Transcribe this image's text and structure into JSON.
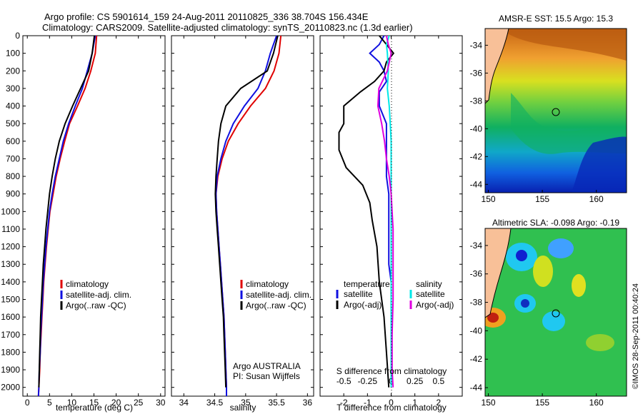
{
  "header": {
    "line1": "Argo profile: CS 5901614_159 24-Aug-2011 20110825_336 38.704S 156.434E",
    "line2": "Climatology: CARS2009. Satellite-adjusted climatology: synTS_20110823.nc (1.3d earlier)"
  },
  "colors": {
    "climatology": "#e00000",
    "satellite": "#1010e0",
    "argo": "#000000",
    "sal_satellite": "#00e8e8",
    "sal_argo": "#e000e0"
  },
  "depth_axis": {
    "ticks": [
      "0",
      "100",
      "200",
      "300",
      "400",
      "500",
      "600",
      "700",
      "800",
      "900",
      "1000",
      "1100",
      "1200",
      "1300",
      "1400",
      "1500",
      "1600",
      "1700",
      "1800",
      "1900",
      "2000"
    ]
  },
  "legend_profiles": {
    "climatology": "climatology",
    "satellite": "satellite-adj. clim.",
    "argo": "Argo(..raw -QC)"
  },
  "legend_diff": {
    "temp_title": "temperature",
    "temp_sat": "satellite",
    "temp_argo": "Argo(-adj)",
    "sal_title": "salinity",
    "sal_sat": "satellite",
    "sal_argo": "Argo(-adj)"
  },
  "credits": {
    "line1": "Argo AUSTRALIA",
    "line2": "PI: Susan Wijffels"
  },
  "side_stamp": "©IMOS 28-Sep-2011 00:40:24",
  "chart_data": [
    {
      "type": "line",
      "panel": "temperature",
      "xlabel": "temperature (deg C)",
      "ylabel": "",
      "xlim": [
        -1,
        31
      ],
      "ylim": [
        2050,
        0
      ],
      "xticks": [
        "0",
        "5",
        "10",
        "15",
        "20",
        "25",
        "30"
      ],
      "yticks": [
        "0",
        "100",
        "200",
        "300",
        "400",
        "500",
        "600",
        "700",
        "800",
        "900",
        "1000",
        "1100",
        "1200",
        "1300",
        "1400",
        "1500",
        "1600",
        "1700",
        "1800",
        "1900",
        "2000"
      ],
      "series": [
        {
          "name": "climatology",
          "points": [
            [
              15.6,
              0
            ],
            [
              15.3,
              100
            ],
            [
              14.3,
              200
            ],
            [
              13.0,
              300
            ],
            [
              11.3,
              400
            ],
            [
              9.5,
              500
            ],
            [
              8.4,
              600
            ],
            [
              7.4,
              700
            ],
            [
              6.5,
              800
            ],
            [
              5.8,
              900
            ],
            [
              5.1,
              1000
            ],
            [
              4.7,
              1100
            ],
            [
              4.3,
              1200
            ],
            [
              4.0,
              1300
            ],
            [
              3.7,
              1400
            ],
            [
              3.5,
              1500
            ],
            [
              3.3,
              1600
            ],
            [
              3.1,
              1700
            ],
            [
              2.9,
              1800
            ],
            [
              2.8,
              1900
            ],
            [
              2.6,
              2000
            ],
            [
              2.5,
              2050
            ]
          ]
        },
        {
          "name": "satellite-adj. clim.",
          "points": [
            [
              15.3,
              0
            ],
            [
              14.6,
              100
            ],
            [
              13.5,
              200
            ],
            [
              12.4,
              300
            ],
            [
              10.8,
              400
            ],
            [
              9.3,
              500
            ],
            [
              8.1,
              600
            ],
            [
              7.2,
              700
            ],
            [
              6.3,
              800
            ],
            [
              5.6,
              900
            ],
            [
              5.0,
              1000
            ],
            [
              4.6,
              1100
            ],
            [
              4.2,
              1200
            ],
            [
              3.9,
              1300
            ],
            [
              3.6,
              1400
            ],
            [
              3.4,
              1500
            ],
            [
              3.2,
              1600
            ],
            [
              3.0,
              1700
            ],
            [
              2.9,
              1800
            ],
            [
              2.7,
              1900
            ],
            [
              2.6,
              2000
            ],
            [
              2.5,
              2050
            ]
          ]
        },
        {
          "name": "Argo(..raw -QC)",
          "points": [
            [
              15.1,
              0
            ],
            [
              14.6,
              100
            ],
            [
              13.8,
              200
            ],
            [
              12.0,
              300
            ],
            [
              10.2,
              400
            ],
            [
              8.5,
              500
            ],
            [
              7.2,
              600
            ],
            [
              6.3,
              700
            ],
            [
              5.6,
              800
            ],
            [
              5.0,
              900
            ],
            [
              4.6,
              1000
            ],
            [
              4.2,
              1100
            ],
            [
              3.9,
              1200
            ],
            [
              3.6,
              1300
            ],
            [
              3.4,
              1400
            ],
            [
              3.2,
              1500
            ],
            [
              3.0,
              1600
            ],
            [
              2.9,
              1700
            ],
            [
              2.8,
              1800
            ],
            [
              2.7,
              1900
            ],
            [
              2.6,
              2000
            ]
          ]
        }
      ]
    },
    {
      "type": "line",
      "panel": "salinity",
      "xlabel": "salinity",
      "ylabel": "",
      "xlim": [
        33.8,
        36.1
      ],
      "ylim": [
        2050,
        0
      ],
      "xticks": [
        "34",
        "34.5",
        "35",
        "35.5",
        "36"
      ],
      "series": [
        {
          "name": "climatology",
          "points": [
            [
              35.57,
              0
            ],
            [
              35.54,
              100
            ],
            [
              35.46,
              200
            ],
            [
              35.32,
              300
            ],
            [
              35.08,
              400
            ],
            [
              34.88,
              500
            ],
            [
              34.72,
              600
            ],
            [
              34.62,
              700
            ],
            [
              34.55,
              800
            ],
            [
              34.52,
              900
            ],
            [
              34.53,
              1000
            ],
            [
              34.55,
              1100
            ],
            [
              34.57,
              1200
            ],
            [
              34.59,
              1300
            ],
            [
              34.61,
              1400
            ],
            [
              34.63,
              1500
            ],
            [
              34.65,
              1600
            ],
            [
              34.66,
              1700
            ],
            [
              34.67,
              1800
            ],
            [
              34.68,
              1900
            ],
            [
              34.69,
              2000
            ],
            [
              34.69,
              2050
            ]
          ]
        },
        {
          "name": "satellite-adj. clim.",
          "points": [
            [
              35.5,
              0
            ],
            [
              35.4,
              100
            ],
            [
              35.32,
              200
            ],
            [
              35.2,
              300
            ],
            [
              34.98,
              400
            ],
            [
              34.8,
              500
            ],
            [
              34.68,
              600
            ],
            [
              34.6,
              700
            ],
            [
              34.54,
              800
            ],
            [
              34.52,
              900
            ],
            [
              34.53,
              1000
            ],
            [
              34.55,
              1100
            ],
            [
              34.57,
              1200
            ],
            [
              34.59,
              1300
            ],
            [
              34.61,
              1400
            ],
            [
              34.63,
              1500
            ],
            [
              34.65,
              1600
            ],
            [
              34.66,
              1700
            ],
            [
              34.67,
              1800
            ],
            [
              34.68,
              1900
            ],
            [
              34.69,
              2000
            ],
            [
              34.69,
              2050
            ]
          ]
        },
        {
          "name": "Argo(..raw -QC)",
          "points": [
            [
              35.52,
              0
            ],
            [
              35.45,
              100
            ],
            [
              35.35,
              200
            ],
            [
              34.92,
              300
            ],
            [
              34.68,
              400
            ],
            [
              34.6,
              500
            ],
            [
              34.56,
              600
            ],
            [
              34.54,
              700
            ],
            [
              34.52,
              800
            ],
            [
              34.51,
              900
            ],
            [
              34.52,
              1000
            ],
            [
              34.54,
              1100
            ],
            [
              34.56,
              1200
            ],
            [
              34.58,
              1300
            ],
            [
              34.6,
              1400
            ],
            [
              34.62,
              1500
            ],
            [
              34.64,
              1600
            ],
            [
              34.65,
              1700
            ],
            [
              34.66,
              1800
            ],
            [
              34.67,
              1900
            ],
            [
              34.68,
              2000
            ]
          ]
        }
      ]
    },
    {
      "type": "line",
      "panel": "differences",
      "xlabel": "T difference from climatology",
      "x2label": "S difference from climatology",
      "ylabel": "",
      "xlim": [
        -3,
        3
      ],
      "x2lim": [
        -0.75,
        0.75
      ],
      "ylim": [
        2050,
        0
      ],
      "xticks": [
        "-2",
        "-1",
        "0",
        "1",
        "2"
      ],
      "x2ticks": [
        "-0.5",
        "-0.25",
        "0",
        "0.25",
        "0.5"
      ],
      "series": [
        {
          "name": "T satellite",
          "points": [
            [
              -0.3,
              0
            ],
            [
              -0.5,
              50
            ],
            [
              -0.9,
              100
            ],
            [
              -0.5,
              150
            ],
            [
              -0.3,
              200
            ],
            [
              -0.2,
              260
            ],
            [
              -0.5,
              320
            ],
            [
              -0.5,
              400
            ],
            [
              -0.2,
              500
            ],
            [
              -0.2,
              600
            ],
            [
              -0.2,
              700
            ],
            [
              -0.2,
              800
            ],
            [
              -0.1,
              900
            ],
            [
              -0.1,
              1000
            ],
            [
              -0.1,
              1100
            ],
            [
              -0.1,
              1200
            ],
            [
              -0.1,
              1300
            ],
            [
              0,
              1400
            ],
            [
              0,
              1600
            ],
            [
              0,
              1800
            ],
            [
              0,
              2000
            ]
          ]
        },
        {
          "name": "T Argo(-adj)",
          "points": [
            [
              -0.5,
              0
            ],
            [
              -0.2,
              50
            ],
            [
              0.1,
              100
            ],
            [
              -0.2,
              150
            ],
            [
              -0.3,
              200
            ],
            [
              -0.7,
              260
            ],
            [
              -1.3,
              320
            ],
            [
              -2.0,
              400
            ],
            [
              -2.0,
              500
            ],
            [
              -2.2,
              550
            ],
            [
              -2.2,
              650
            ],
            [
              -1.9,
              750
            ],
            [
              -1.2,
              850
            ],
            [
              -0.9,
              950
            ],
            [
              -0.8,
              1050
            ],
            [
              -0.6,
              1200
            ],
            [
              -0.5,
              1400
            ],
            [
              -0.3,
              1600
            ],
            [
              -0.2,
              1800
            ],
            [
              -0.1,
              2000
            ]
          ]
        },
        {
          "name": "S satellite",
          "points": [
            [
              -0.02,
              0
            ],
            [
              -0.05,
              50
            ],
            [
              -0.04,
              100
            ],
            [
              -0.03,
              200
            ],
            [
              -0.04,
              300
            ],
            [
              -0.02,
              400
            ],
            [
              -0.01,
              500
            ],
            [
              0,
              600
            ],
            [
              0,
              800
            ],
            [
              0,
              1000
            ],
            [
              0,
              1200
            ],
            [
              0,
              1400
            ],
            [
              0,
              1600
            ],
            [
              0,
              1800
            ],
            [
              0,
              2000
            ]
          ]
        },
        {
          "name": "S Argo(-adj)",
          "points": [
            [
              -0.05,
              0
            ],
            [
              -0.03,
              50
            ],
            [
              0,
              100
            ],
            [
              -0.04,
              200
            ],
            [
              -0.13,
              300
            ],
            [
              -0.14,
              400
            ],
            [
              -0.1,
              500
            ],
            [
              -0.07,
              600
            ],
            [
              -0.05,
              700
            ],
            [
              -0.02,
              800
            ],
            [
              0,
              900
            ],
            [
              0.01,
              1000
            ],
            [
              0.02,
              1100
            ],
            [
              0.02,
              1300
            ],
            [
              0.02,
              1500
            ],
            [
              0.01,
              1700
            ],
            [
              0.01,
              1900
            ],
            [
              0.02,
              2000
            ]
          ]
        }
      ]
    },
    {
      "type": "heatmap",
      "panel": "sst_map",
      "title": "AMSR-E SST: 15.5 Argo: 15.3",
      "xlim": [
        149.7,
        162.8
      ],
      "ylim": [
        -44.6,
        -32.8
      ],
      "xticks": [
        "150",
        "155",
        "160"
      ],
      "yticks": [
        "-34",
        "-36",
        "-38",
        "-40",
        "-42",
        "-44"
      ],
      "marker": {
        "lon": 156.434,
        "lat": -38.704
      }
    },
    {
      "type": "heatmap",
      "panel": "sla_map",
      "title": "Altimetric SLA: -0.098 Argo: -0.19",
      "xlim": [
        149.7,
        162.8
      ],
      "ylim": [
        -44.6,
        -32.8
      ],
      "xticks": [
        "150",
        "155",
        "160"
      ],
      "yticks": [
        "-34",
        "-36",
        "-38",
        "-40",
        "-42",
        "-44"
      ],
      "marker": {
        "lon": 156.434,
        "lat": -38.704
      }
    }
  ]
}
